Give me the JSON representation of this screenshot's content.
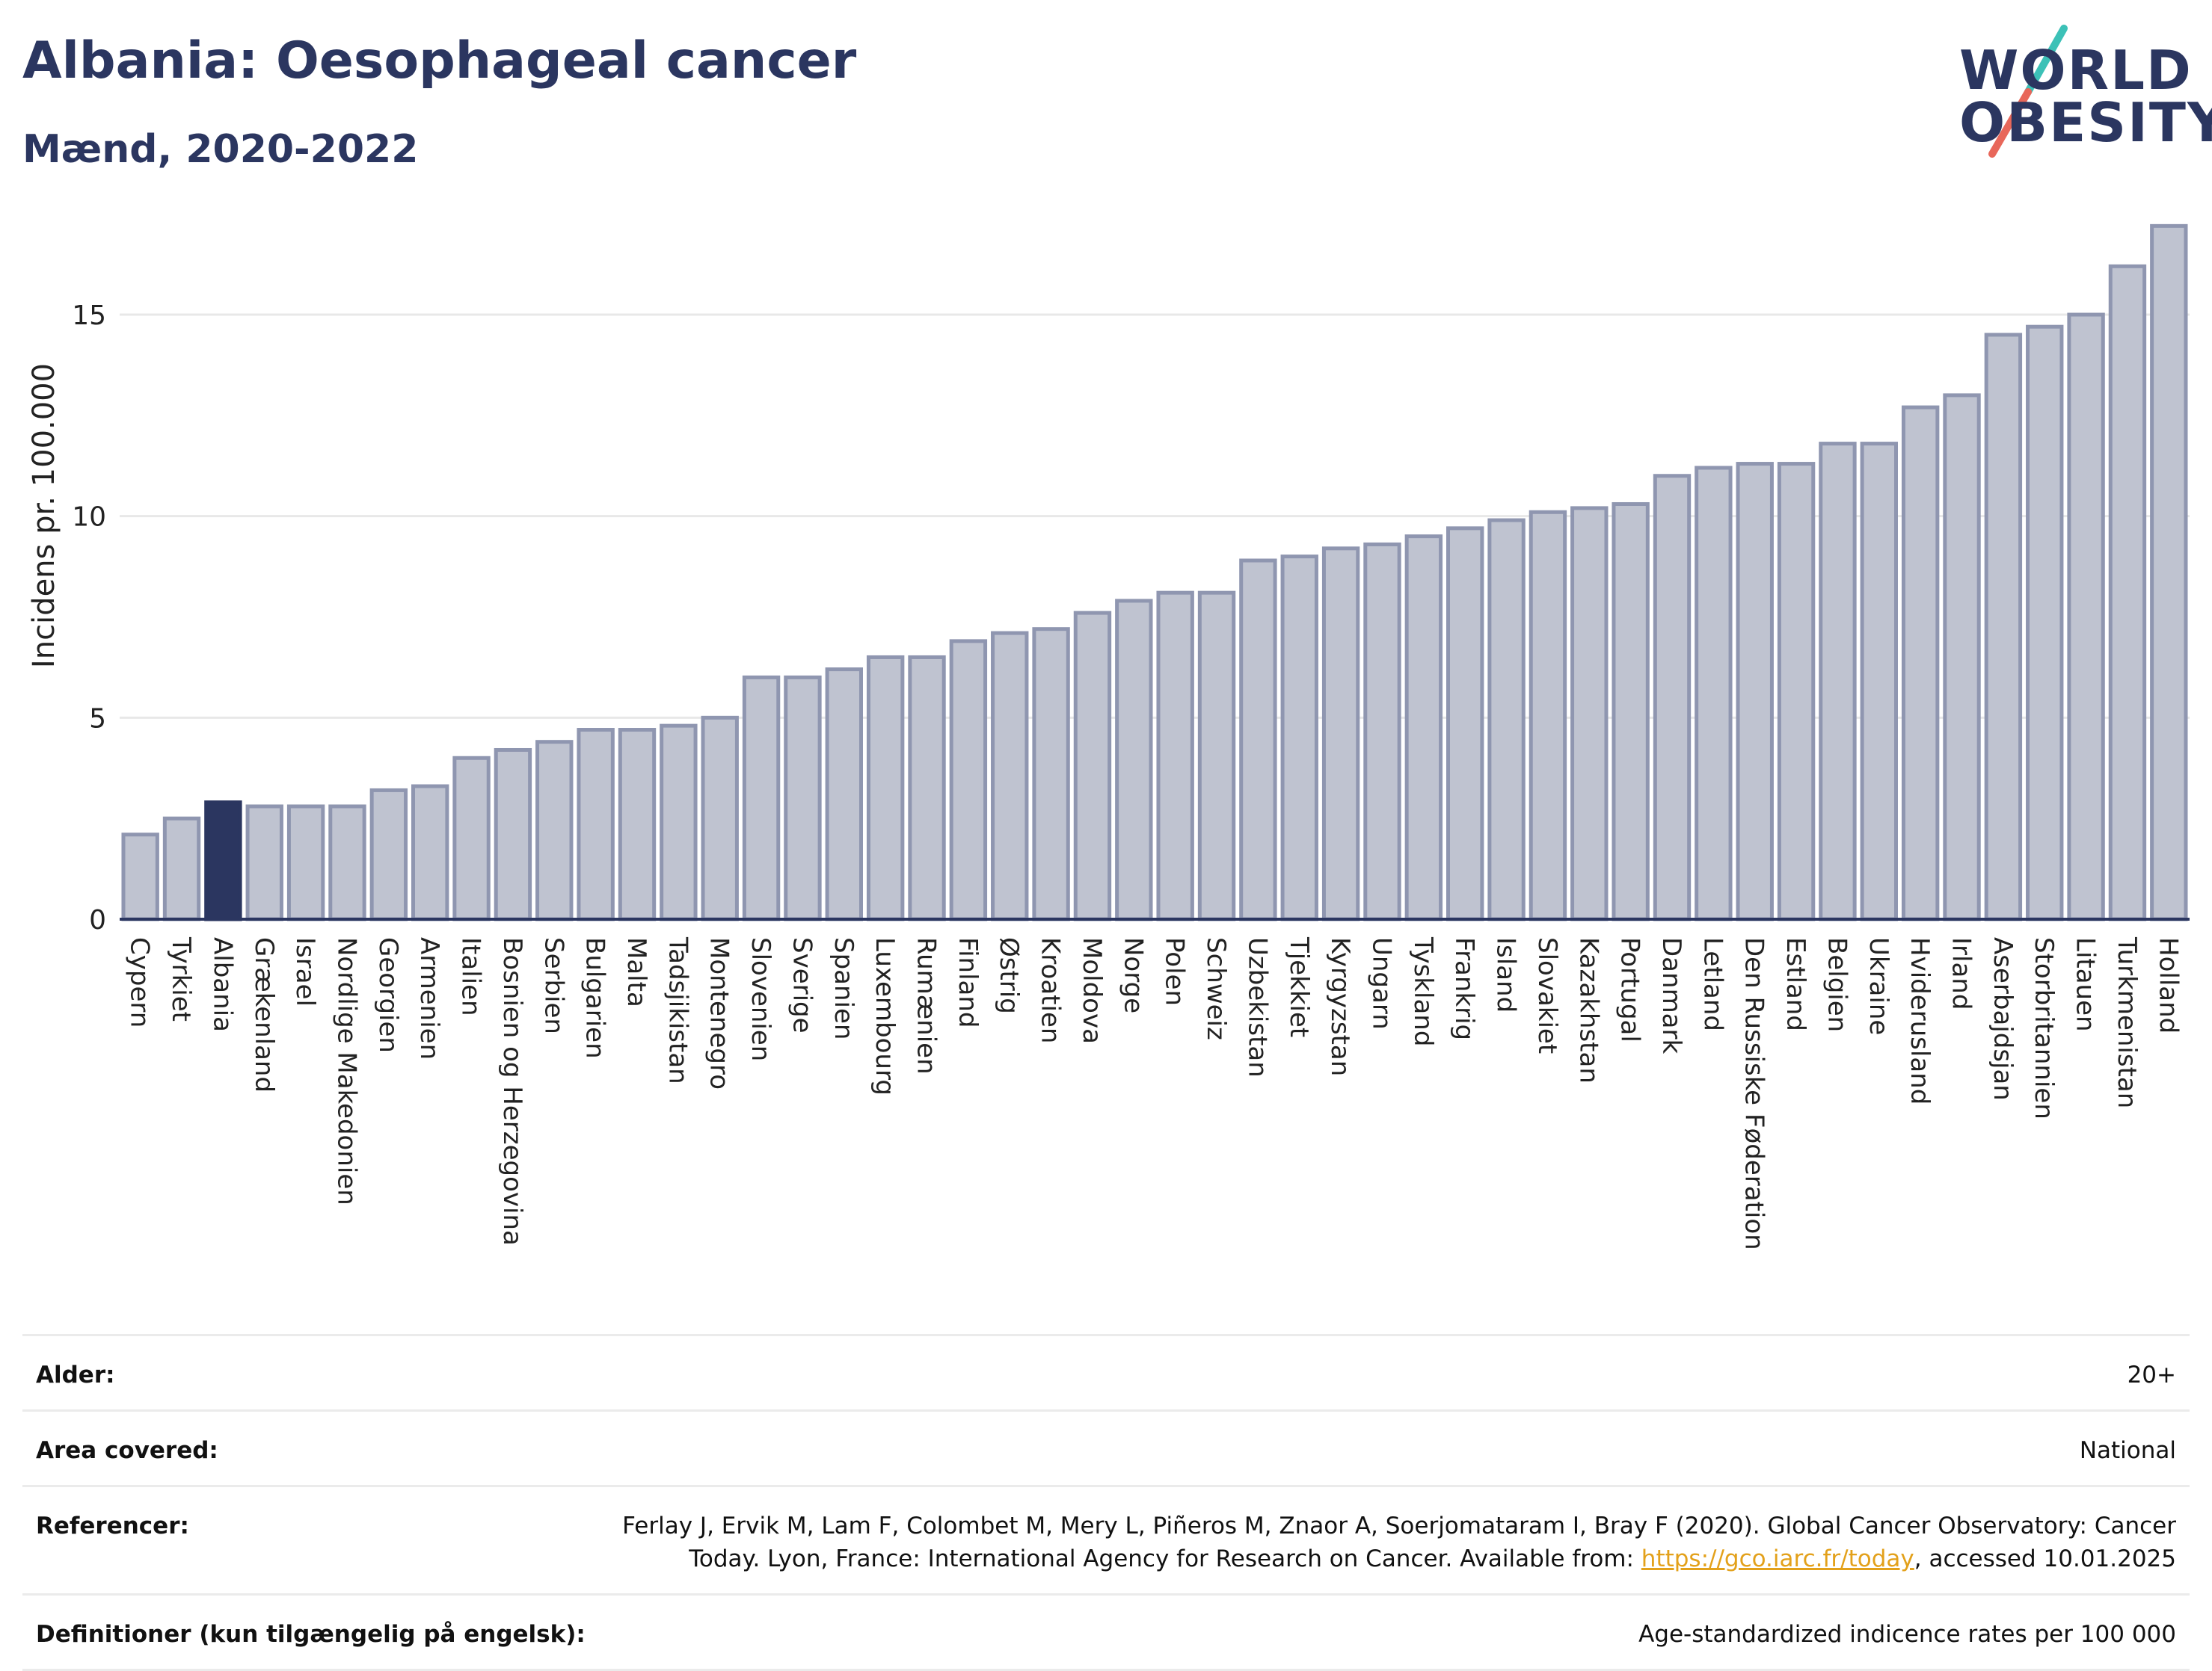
{
  "header": {
    "title": "Albania: Oesophageal cancer",
    "subtitle": "Mænd, 2020-2022"
  },
  "logo": {
    "line1": "WORLD",
    "line2": "OBESITY"
  },
  "colors": {
    "bar_fill": "#bfc3d0",
    "bar_stroke": "#8f96b0",
    "highlight": "#2b3660",
    "grid": "#e8e8e8",
    "logo_teal": "#3cc1b7",
    "logo_coral": "#e8675a"
  },
  "chart_data": {
    "type": "bar",
    "ylabel": "Incidens pr. 100.000",
    "xlabel": "",
    "ylim": [
      0,
      17.8
    ],
    "yticks": [
      0,
      5,
      10,
      15
    ],
    "grid": true,
    "highlight": "Albania",
    "categories": [
      "Cypern",
      "Tyrkiet",
      "Albania",
      "Grækenland",
      "Israel",
      "Nordlige Makedonien",
      "Georgien",
      "Armenien",
      "Italien",
      "Bosnien og Herzegovina",
      "Serbien",
      "Bulgarien",
      "Malta",
      "Tadsjikistan",
      "Montenegro",
      "Slovenien",
      "Sverige",
      "Spanien",
      "Luxembourg",
      "Rumænien",
      "Finland",
      "Østrig",
      "Kroatien",
      "Moldova",
      "Norge",
      "Polen",
      "Schweiz",
      "Uzbekistan",
      "Tjekkiet",
      "Kyrgyzstan",
      "Ungarn",
      "Tyskland",
      "Frankrig",
      "Island",
      "Slovakiet",
      "Kazakhstan",
      "Portugal",
      "Danmark",
      "Letland",
      "Den Russiske Føderation",
      "Estland",
      "Belgien",
      "Ukraine",
      "Hviderusland",
      "Irland",
      "Aserbajdsjan",
      "Storbritannien",
      "Litauen",
      "Turkmenistan",
      "Holland"
    ],
    "values": [
      2.1,
      2.5,
      2.9,
      2.8,
      2.8,
      2.8,
      3.2,
      3.3,
      4.0,
      4.2,
      4.4,
      4.7,
      4.7,
      4.8,
      5.0,
      6.0,
      6.0,
      6.2,
      6.5,
      6.5,
      6.9,
      7.1,
      7.2,
      7.6,
      7.9,
      8.1,
      8.1,
      8.9,
      9.0,
      9.2,
      9.3,
      9.5,
      9.7,
      9.9,
      10.1,
      10.2,
      10.3,
      11.0,
      11.2,
      11.3,
      11.3,
      11.8,
      11.8,
      12.7,
      13.0,
      14.5,
      14.7,
      15.0,
      16.2,
      17.2
    ]
  },
  "meta": [
    {
      "label": "Alder:",
      "value": "20+"
    },
    {
      "label": "Area covered:",
      "value": "National"
    },
    {
      "label": "Referencer:",
      "value_line1": "Ferlay J, Ervik M, Lam F, Colombet M, Mery L, Piñeros M, Znaor A, Soerjomataram I, Bray F (2020). Global Cancer Observatory: Cancer",
      "value_line2_pre": "Today. Lyon, France: International Agency for Research on Cancer. Available from: ",
      "link": "https://gco.iarc.fr/today",
      "value_line2_post": ", accessed 10.01.2025"
    },
    {
      "label": "Definitioner (kun tilgængelig på engelsk):",
      "value": "Age-standardized indicence rates per 100 000"
    }
  ]
}
